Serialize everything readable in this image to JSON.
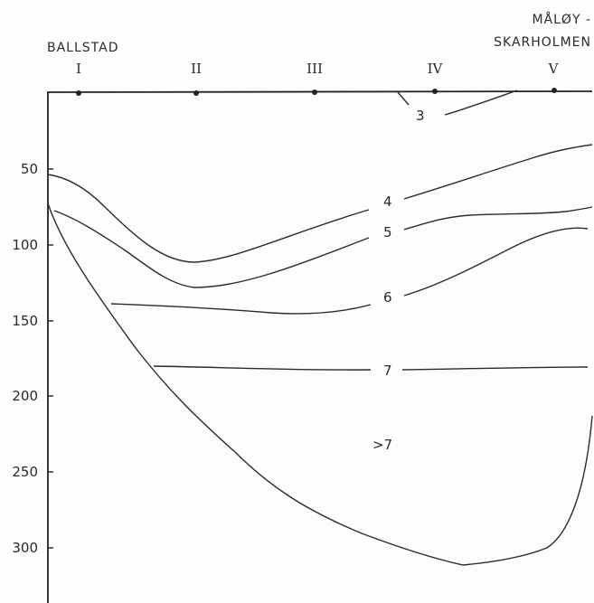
{
  "locations": {
    "left": "BALLSTAD",
    "right_line1": "MÅLØY -",
    "right_line2": "SKARHOLMEN"
  },
  "stations": [
    "I",
    "II",
    "III",
    "IV",
    "V"
  ],
  "depth_ticks": [
    "50",
    "100",
    "150",
    "200",
    "250",
    "300"
  ],
  "contours": {
    "c3": "3",
    "c4": "4",
    "c5": "5",
    "c6": "6",
    "c7": "7",
    "c_gt7": ">7"
  }
}
